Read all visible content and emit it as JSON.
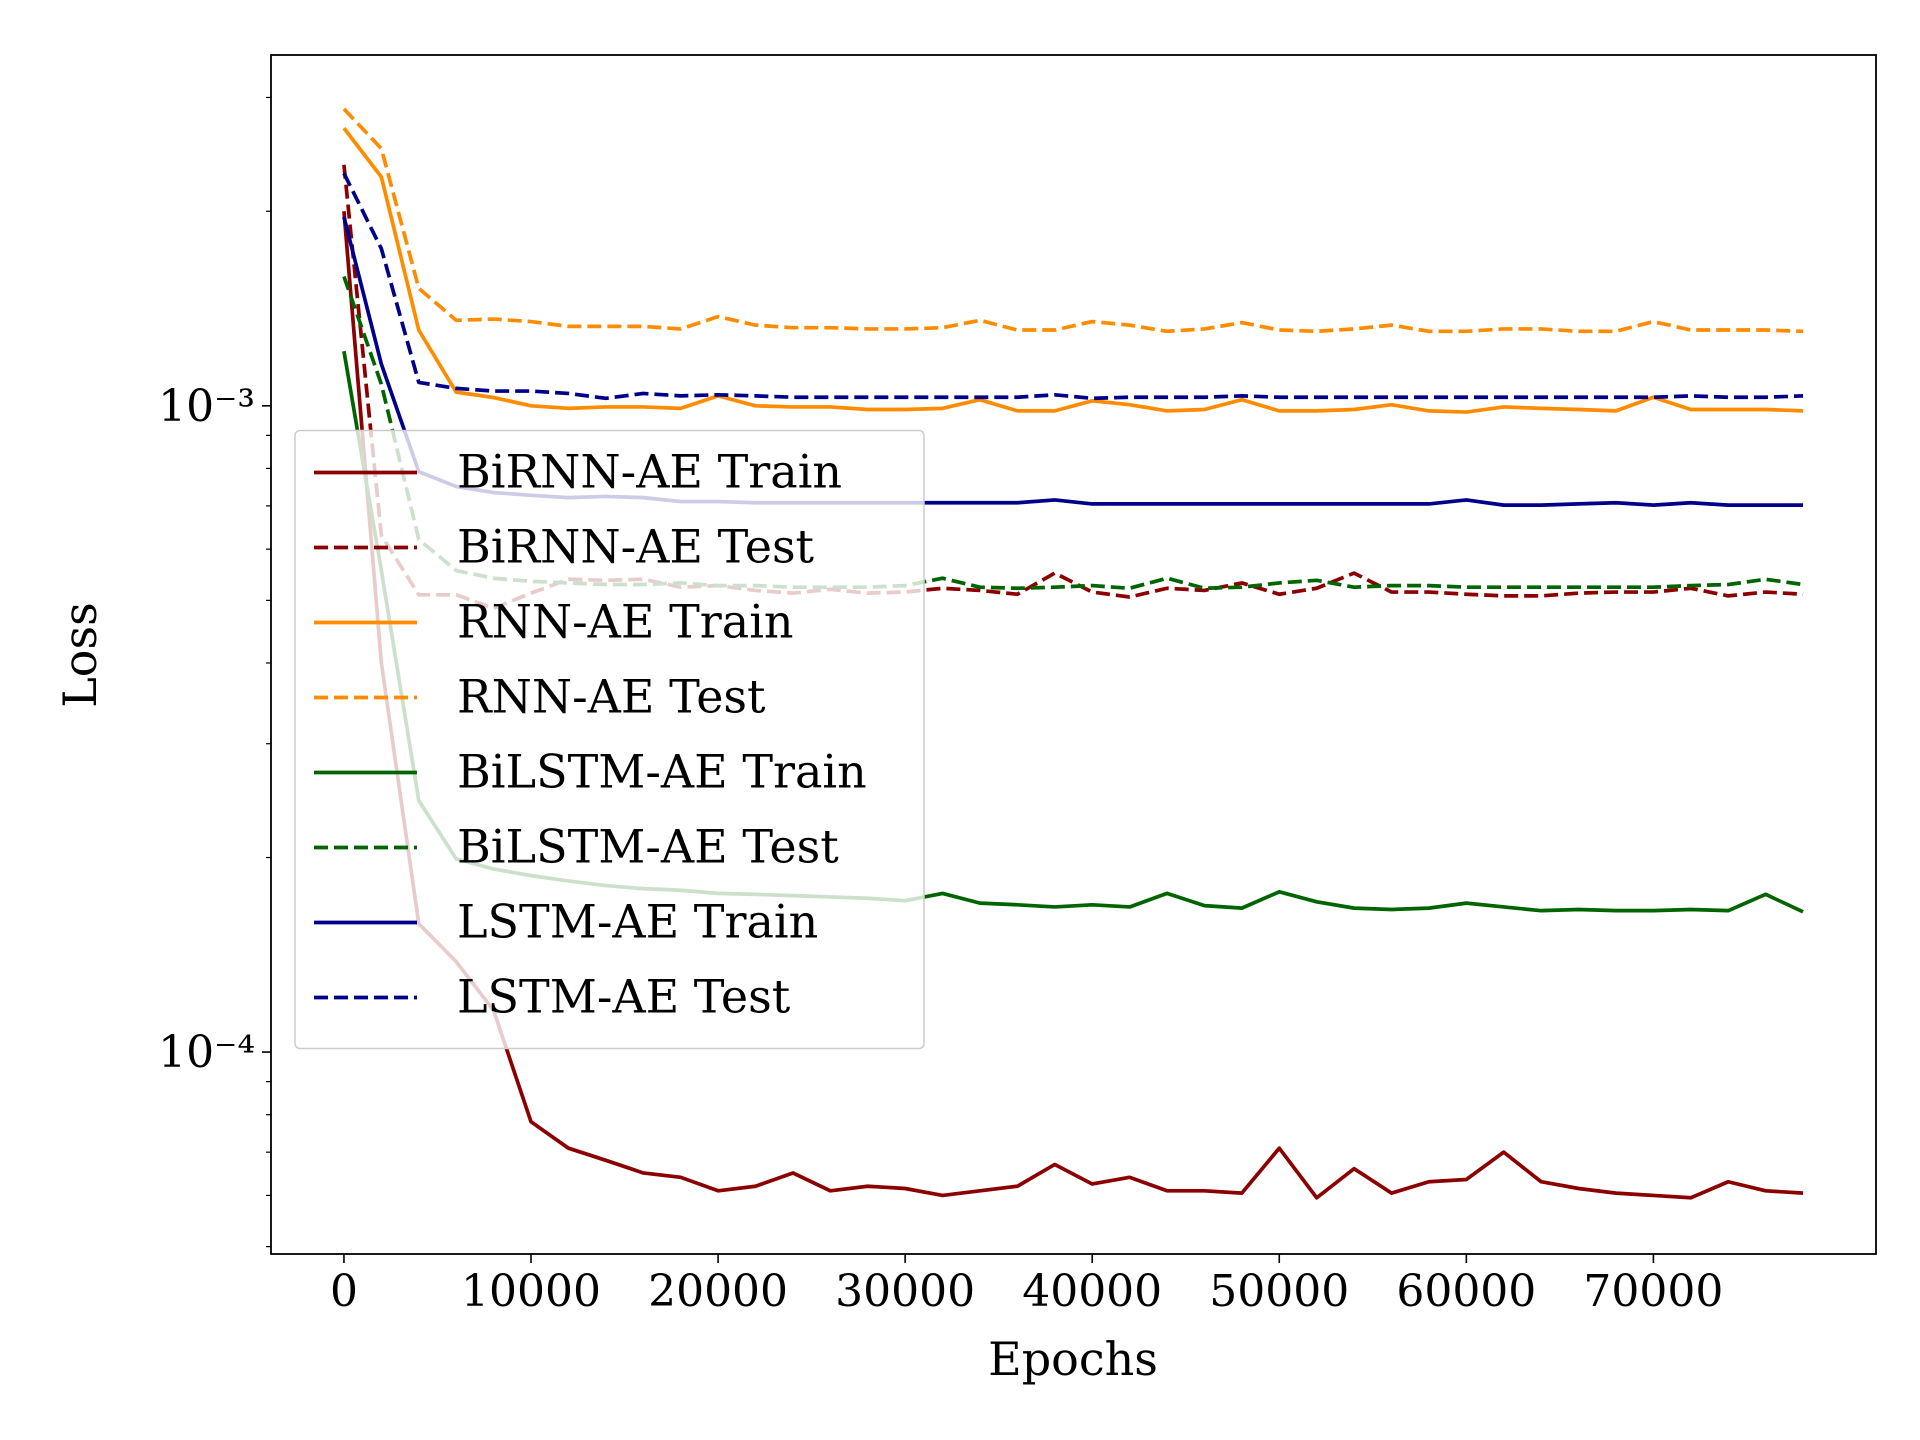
{
  "chart_data": {
    "type": "line",
    "x_label": "Epochs",
    "y_label": "Loss",
    "yscale": "log",
    "legend": "center left",
    "x": [
      0,
      2000,
      4000,
      6000,
      8000,
      10000,
      12000,
      14000,
      16000,
      18000,
      20000,
      22000,
      24000,
      26000,
      28000,
      30000,
      32000,
      34000,
      36000,
      38000,
      40000,
      42000,
      44000,
      46000,
      48000,
      50000,
      52000,
      54000,
      56000,
      58000,
      60000,
      62000,
      64000,
      66000,
      68000,
      70000,
      72000,
      74000,
      76000,
      78000
    ],
    "xlim": [
      -3900,
      81900
    ],
    "xticks": [
      0,
      10000,
      20000,
      30000,
      40000,
      50000,
      60000,
      70000
    ],
    "ylim": [
      4.87e-05,
      0.00349
    ],
    "yticks": [
      {
        "value": 0.0001,
        "label": "10⁻⁴"
      },
      {
        "value": 0.001,
        "label": "10⁻³"
      }
    ],
    "yminorticks": [
      5e-05,
      6e-05,
      7e-05,
      8e-05,
      9e-05,
      0.0002,
      0.0003,
      0.0004,
      0.0005,
      0.0006,
      0.0007,
      0.0008,
      0.0009,
      0.002,
      0.003
    ],
    "series": [
      {
        "name": "BiRNN-AE Train",
        "color": "#8b0000",
        "linestyle": "solid",
        "values": [
          0.002,
          0.0004,
          0.000158,
          0.000138,
          0.000116,
          7.8e-05,
          7.1e-05,
          6.8e-05,
          6.5e-05,
          6.4e-05,
          6.1e-05,
          6.2e-05,
          6.5e-05,
          6.1e-05,
          6.2e-05,
          6.15e-05,
          6e-05,
          6.1e-05,
          6.2e-05,
          6.7e-05,
          6.25e-05,
          6.4e-05,
          6.1e-05,
          6.1e-05,
          6.05e-05,
          7.1e-05,
          5.95e-05,
          6.6e-05,
          6.05e-05,
          6.3e-05,
          6.35e-05,
          7e-05,
          6.3e-05,
          6.15e-05,
          6.05e-05,
          6e-05,
          5.95e-05,
          6.3e-05,
          6.1e-05,
          6.05e-05
        ]
      },
      {
        "name": "BiRNN-AE Test",
        "color": "#8b0000",
        "linestyle": "dashed",
        "values": [
          0.00236,
          0.00063,
          0.00051,
          0.00051,
          0.000486,
          0.000513,
          0.000539,
          0.000537,
          0.000539,
          0.000524,
          0.000527,
          0.000518,
          0.000513,
          0.00052,
          0.000513,
          0.000515,
          0.000522,
          0.000518,
          0.000511,
          0.000551,
          0.000515,
          0.000506,
          0.000522,
          0.000518,
          0.000532,
          0.000511,
          0.000522,
          0.000551,
          0.000515,
          0.000515,
          0.000511,
          0.000508,
          0.000508,
          0.000513,
          0.000515,
          0.000515,
          0.000522,
          0.000508,
          0.000515,
          0.000511
        ]
      },
      {
        "name": "RNN-AE Train",
        "color": "#ff8c00",
        "linestyle": "solid",
        "values": [
          0.00269,
          0.00226,
          0.00131,
          0.00105,
          0.00103,
          0.001,
          0.000991,
          0.000996,
          0.000996,
          0.000991,
          0.001036,
          0.001,
          0.000996,
          0.000996,
          0.000987,
          0.000987,
          0.000991,
          0.001022,
          0.000982,
          0.000982,
          0.001018,
          0.001004,
          0.000982,
          0.000987,
          0.001022,
          0.000982,
          0.000982,
          0.000987,
          0.001004,
          0.000982,
          0.000978,
          0.000996,
          0.000991,
          0.000987,
          0.000982,
          0.001031,
          0.000987,
          0.000987,
          0.000987,
          0.000982
        ]
      },
      {
        "name": "RNN-AE Test",
        "color": "#ff8c00",
        "linestyle": "dashed",
        "values": [
          0.00288,
          0.0025,
          0.00152,
          0.001356,
          0.001362,
          0.00135,
          0.001327,
          0.001327,
          0.001327,
          0.001315,
          0.001374,
          0.001333,
          0.001321,
          0.001321,
          0.001315,
          0.001315,
          0.001321,
          0.001356,
          0.00131,
          0.00131,
          0.00135,
          0.001333,
          0.001304,
          0.001315,
          0.001345,
          0.00131,
          0.001304,
          0.001315,
          0.001333,
          0.001304,
          0.001304,
          0.001315,
          0.001315,
          0.001304,
          0.001304,
          0.00135,
          0.00131,
          0.00131,
          0.00131,
          0.001304
        ]
      },
      {
        "name": "BiLSTM-AE Train",
        "color": "#006400",
        "linestyle": "solid",
        "values": [
          0.001215,
          0.000556,
          0.000245,
          0.000199,
          0.000192,
          0.0001875,
          0.000184,
          0.000181,
          0.000179,
          0.000178,
          0.000176,
          0.0001754,
          0.0001746,
          0.0001738,
          0.000173,
          0.0001715,
          0.000176,
          0.00017,
          0.000169,
          0.0001677,
          0.000169,
          0.0001677,
          0.000176,
          0.0001685,
          0.000167,
          0.000177,
          0.0001708,
          0.000167,
          0.0001662,
          0.000167,
          0.00017,
          0.0001677,
          0.0001655,
          0.0001662,
          0.0001655,
          0.0001655,
          0.0001662,
          0.0001655,
          0.0001754,
          0.0001648
        ]
      },
      {
        "name": "BiLSTM-AE Test",
        "color": "#006400",
        "linestyle": "dashed",
        "values": [
          0.001585,
          0.00108,
          0.000621,
          0.000556,
          0.000541,
          0.000535,
          0.000532,
          0.000529,
          0.000529,
          0.000532,
          0.000527,
          0.000527,
          0.000524,
          0.000524,
          0.000524,
          0.000527,
          0.000541,
          0.000524,
          0.000522,
          0.000524,
          0.000527,
          0.000522,
          0.000541,
          0.000522,
          0.000524,
          0.000532,
          0.000537,
          0.000524,
          0.000527,
          0.000527,
          0.000524,
          0.000524,
          0.000524,
          0.000524,
          0.000524,
          0.000524,
          0.000527,
          0.000529,
          0.000539,
          0.000529
        ]
      },
      {
        "name": "LSTM-AE Train",
        "color": "#00008b",
        "linestyle": "solid",
        "values": [
          0.00196,
          0.00116,
          0.000791,
          0.00075,
          0.000734,
          0.000727,
          0.000721,
          0.000724,
          0.000721,
          0.000711,
          0.000711,
          0.000708,
          0.000708,
          0.000708,
          0.000708,
          0.000708,
          0.000708,
          0.000708,
          0.000708,
          0.000715,
          0.000705,
          0.000705,
          0.000705,
          0.000705,
          0.000705,
          0.000705,
          0.000705,
          0.000705,
          0.000705,
          0.000705,
          0.000715,
          0.000702,
          0.000702,
          0.000705,
          0.000708,
          0.000702,
          0.000708,
          0.000702,
          0.000702,
          0.000702
        ]
      },
      {
        "name": "LSTM-AE Test",
        "color": "#00008b",
        "linestyle": "dashed",
        "values": [
          0.00229,
          0.00175,
          0.001087,
          0.001064,
          0.001054,
          0.001054,
          0.001045,
          0.001027,
          0.001045,
          0.001036,
          0.00104,
          0.001036,
          0.001031,
          0.001031,
          0.001031,
          0.001031,
          0.001031,
          0.001031,
          0.001031,
          0.00104,
          0.001027,
          0.001031,
          0.001031,
          0.001031,
          0.001036,
          0.001031,
          0.001031,
          0.001031,
          0.001031,
          0.001031,
          0.001031,
          0.001031,
          0.001031,
          0.001031,
          0.001031,
          0.001031,
          0.001036,
          0.001031,
          0.001031,
          0.001036
        ]
      }
    ]
  }
}
